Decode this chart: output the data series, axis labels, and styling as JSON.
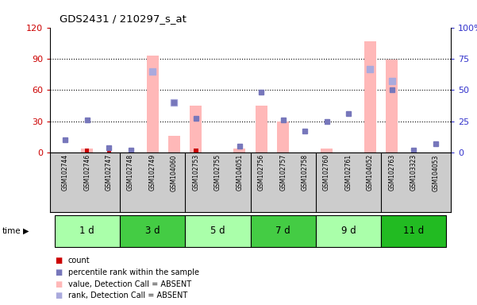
{
  "title": "GDS2431 / 210297_s_at",
  "samples": [
    "GSM102744",
    "GSM102746",
    "GSM102747",
    "GSM102748",
    "GSM102749",
    "GSM104060",
    "GSM102753",
    "GSM102755",
    "GSM104051",
    "GSM102756",
    "GSM102757",
    "GSM102758",
    "GSM102760",
    "GSM102761",
    "GSM104052",
    "GSM102763",
    "GSM103323",
    "GSM104053"
  ],
  "time_groups": [
    {
      "label": "1 d",
      "start": 0,
      "end": 3,
      "color": "#aaffaa"
    },
    {
      "label": "3 d",
      "start": 3,
      "end": 6,
      "color": "#44cc44"
    },
    {
      "label": "5 d",
      "start": 6,
      "end": 9,
      "color": "#aaffaa"
    },
    {
      "label": "7 d",
      "start": 9,
      "end": 12,
      "color": "#44cc44"
    },
    {
      "label": "9 d",
      "start": 12,
      "end": 15,
      "color": "#aaffaa"
    },
    {
      "label": "11 d",
      "start": 15,
      "end": 18,
      "color": "#22bb22"
    }
  ],
  "bar_values_absent": [
    0,
    4,
    0,
    0,
    93,
    16,
    45,
    0,
    4,
    45,
    30,
    0,
    4,
    0,
    107,
    89,
    0,
    0
  ],
  "rank_absent": [
    null,
    null,
    null,
    null,
    65,
    40,
    null,
    null,
    null,
    null,
    null,
    null,
    null,
    null,
    67,
    57,
    null,
    null
  ],
  "count_red": [
    0,
    4,
    3,
    0,
    0,
    0,
    4,
    0,
    0,
    0,
    0,
    0,
    0,
    0,
    0,
    0,
    0,
    0
  ],
  "blue_squares": [
    10,
    26,
    4,
    2,
    null,
    40,
    27,
    null,
    5,
    48,
    26,
    17,
    25,
    31,
    null,
    50,
    2,
    7
  ],
  "ylim_left": [
    0,
    120
  ],
  "ylim_right": [
    0,
    100
  ],
  "yticks_left": [
    0,
    30,
    60,
    90,
    120
  ],
  "yticks_right": [
    0,
    25,
    50,
    75,
    100
  ],
  "ylabel_left_color": "#cc0000",
  "ylabel_right_color": "#3333cc",
  "bar_absent_color": "#ffb8b8",
  "bar_count_color": "#cc0000",
  "blue_sq_color": "#7777bb",
  "rank_absent_color": "#aaaadd",
  "sample_bg_color": "#cccccc",
  "legend_items": [
    {
      "color": "#cc0000",
      "label": "count"
    },
    {
      "color": "#7777bb",
      "label": "percentile rank within the sample"
    },
    {
      "color": "#ffb8b8",
      "label": "value, Detection Call = ABSENT"
    },
    {
      "color": "#aaaadd",
      "label": "rank, Detection Call = ABSENT"
    }
  ]
}
